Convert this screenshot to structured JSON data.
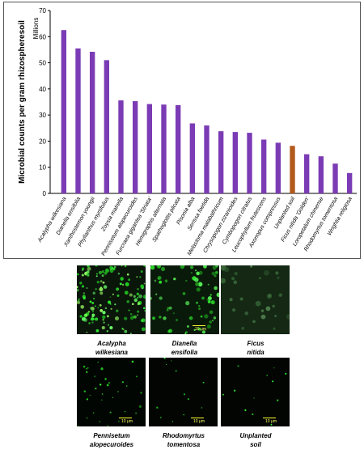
{
  "chart_data": {
    "type": "bar",
    "ylabel": "Microbial counts per gram rhizospheresoil",
    "y_unit": "Millions",
    "ylim": [
      0,
      70
    ],
    "yticks": [
      0,
      10,
      20,
      30,
      40,
      50,
      60,
      70
    ],
    "grid": false,
    "categories": [
      "Acalypha wilkesiana",
      "Dianella ensifolia",
      "Xanthostemon youngii",
      "Phyllanthus myrtifolius",
      "Zoysia matrella",
      "Pennisetum alopecuroides",
      "Furcraea gigantea 'Striata'",
      "Hemigraphis alternata",
      "Spathoglottis plicata",
      "Pisonia alba",
      "Serissa foetida",
      "Melastoma malabathricum",
      "Chrysopogon zizanioides",
      "Cymbopogon citratus",
      "Leucophyllum frutescens",
      "Axonopus compressus",
      "Unplanted soil",
      "Ficus nitida 'Golden'",
      "Loropetalum chinense",
      "Rhodomyrtus tomentosa",
      "Wrightia religiosa"
    ],
    "values": [
      62.5,
      55.5,
      54.2,
      51,
      35.6,
      35.3,
      34.2,
      34,
      33.8,
      26.8,
      26,
      23.8,
      23.5,
      23.2,
      20.6,
      19.4,
      18.2,
      15,
      14.2,
      11.4,
      7.8
    ],
    "colors": {
      "bar": "#7b3bb5",
      "highlight": "#b25a1d",
      "highlight_category": "Unplanted soil"
    }
  },
  "micrographs": [
    {
      "caption_line1": "Acalypha",
      "caption_line2": "wilkesiana",
      "scale": "",
      "density": "high"
    },
    {
      "caption_line1": "Dianella",
      "caption_line2": "ensifolia",
      "scale": "10 μm",
      "density": "medium"
    },
    {
      "caption_line1": "Ficus",
      "caption_line2": "nitida",
      "scale": "",
      "density": "faint"
    },
    {
      "caption_line1": "Pennisetum",
      "caption_line2": "alopecuroides",
      "scale": "10 μm",
      "density": "low"
    },
    {
      "caption_line1": "Rhodomyrtus",
      "caption_line2": "tomentosa",
      "scale": "10 μm",
      "density": "very-low"
    },
    {
      "caption_line1": "Unplanted",
      "caption_line2": "soil",
      "scale": "10 μm",
      "density": "very-low"
    }
  ]
}
